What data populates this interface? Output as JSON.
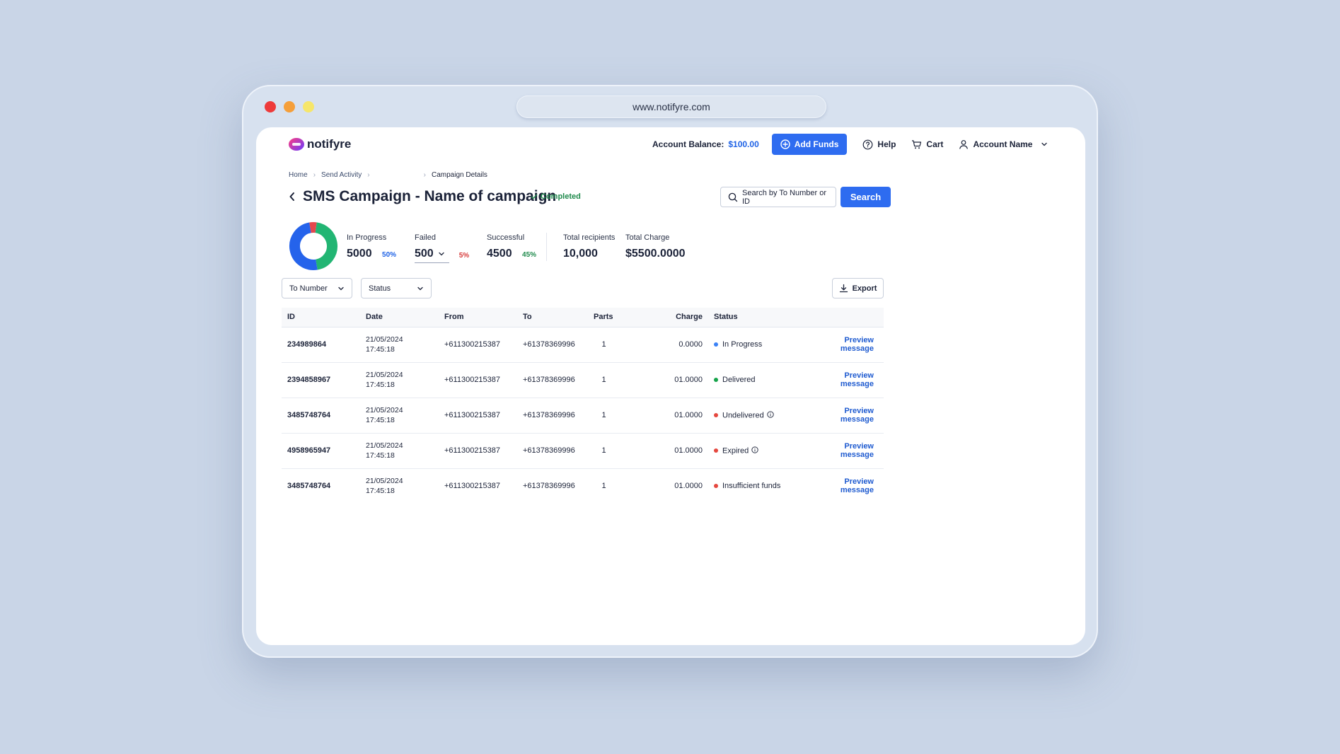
{
  "browser": {
    "url": "www.notifyre.com",
    "dots": [
      "#ee3a3a",
      "#f59f3a",
      "#f6e66a"
    ]
  },
  "header": {
    "logo_text": "notifyre",
    "balance_label": "Account Balance:",
    "balance_value": "$100.00",
    "add_funds": "Add Funds",
    "help": "Help",
    "cart": "Cart",
    "account": "Account Name"
  },
  "breadcrumb": {
    "home": "Home",
    "send_activity": "Send Activity",
    "current": "Campaign Details"
  },
  "page": {
    "title": "SMS Campaign - Name of campaign",
    "status": "Completed",
    "search_placeholder": "Search by To Number or ID",
    "search_button": "Search"
  },
  "summary": {
    "donut": [
      {
        "name": "In Progress",
        "percent": 50,
        "color": "#2563eb"
      },
      {
        "name": "Successful",
        "percent": 45,
        "color": "#22b573"
      },
      {
        "name": "Failed",
        "percent": 5,
        "color": "#e5484d"
      }
    ],
    "in_progress": {
      "label": "In Progress",
      "value": "5000",
      "pct": "50%"
    },
    "failed": {
      "label": "Failed",
      "value": "500",
      "pct": "5%"
    },
    "successful": {
      "label": "Successful",
      "value": "4500",
      "pct": "45%"
    },
    "total_recipients": {
      "label": "Total recipients",
      "value": "10,000"
    },
    "total_charge": {
      "label": "Total Charge",
      "value": "$5500.0000"
    }
  },
  "filters": {
    "to_number": "To Number",
    "status": "Status",
    "export": "Export"
  },
  "table": {
    "headers": {
      "id": "ID",
      "date": "Date",
      "from": "From",
      "to": "To",
      "parts": "Parts",
      "charge": "Charge",
      "status": "Status"
    },
    "preview_label": "Preview message",
    "rows": [
      {
        "id": "234989864",
        "date": "21/05/2024",
        "time": "17:45:18",
        "from": "+611300215387",
        "to": "+61378369996",
        "parts": "1",
        "charge": "0.0000",
        "status": "In Progress",
        "status_color": "#3b82f6",
        "info": false
      },
      {
        "id": "2394858967",
        "date": "21/05/2024",
        "time": "17:45:18",
        "from": "+611300215387",
        "to": "+61378369996",
        "parts": "1",
        "charge": "01.0000",
        "status": "Delivered",
        "status_color": "#16a34a",
        "info": false
      },
      {
        "id": "3485748764",
        "date": "21/05/2024",
        "time": "17:45:18",
        "from": "+611300215387",
        "to": "+61378369996",
        "parts": "1",
        "charge": "01.0000",
        "status": "Undelivered",
        "status_color": "#e5483f",
        "info": true
      },
      {
        "id": "4958965947",
        "date": "21/05/2024",
        "time": "17:45:18",
        "from": "+611300215387",
        "to": "+61378369996",
        "parts": "1",
        "charge": "01.0000",
        "status": "Expired",
        "status_color": "#e5483f",
        "info": true
      },
      {
        "id": "3485748764",
        "date": "21/05/2024",
        "time": "17:45:18",
        "from": "+611300215387",
        "to": "+61378369996",
        "parts": "1",
        "charge": "01.0000",
        "status": "Insufficient funds",
        "status_color": "#e5483f",
        "info": false
      }
    ]
  }
}
